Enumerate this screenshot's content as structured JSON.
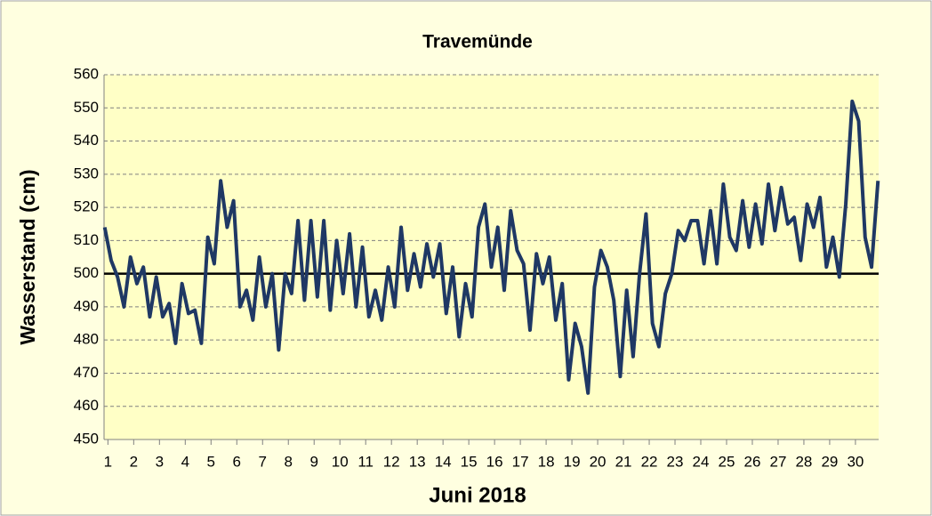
{
  "chart_data": {
    "type": "line",
    "title": "Travemünde",
    "xlabel": "Juni  2018",
    "ylabel": "Wasserstand (cm)",
    "x": [
      0.875,
      1.125,
      1.375,
      1.625,
      1.875,
      2.125,
      2.375,
      2.625,
      2.875,
      3.125,
      3.375,
      3.625,
      3.875,
      4.125,
      4.375,
      4.625,
      4.875,
      5.125,
      5.375,
      5.625,
      5.875,
      6.125,
      6.375,
      6.625,
      6.875,
      7.125,
      7.375,
      7.625,
      7.875,
      8.125,
      8.375,
      8.625,
      8.875,
      9.125,
      9.375,
      9.625,
      9.875,
      10.125,
      10.375,
      10.625,
      10.875,
      11.125,
      11.375,
      11.625,
      11.875,
      12.125,
      12.375,
      12.625,
      12.875,
      13.125,
      13.375,
      13.625,
      13.875,
      14.125,
      14.375,
      14.625,
      14.875,
      15.125,
      15.375,
      15.625,
      15.875,
      16.125,
      16.375,
      16.625,
      16.875,
      17.125,
      17.375,
      17.625,
      17.875,
      18.125,
      18.375,
      18.625,
      18.875,
      19.125,
      19.375,
      19.625,
      19.875,
      20.125,
      20.375,
      20.625,
      20.875,
      21.125,
      21.375,
      21.625,
      21.875,
      22.125,
      22.375,
      22.625,
      22.875,
      23.125,
      23.375,
      23.625,
      23.875,
      24.125,
      24.375,
      24.625,
      24.875,
      25.125,
      25.375,
      25.625,
      25.875,
      26.125,
      26.375,
      26.625,
      26.875,
      27.125,
      27.375,
      27.625,
      27.875,
      28.125,
      28.375,
      28.625,
      28.875,
      29.125,
      29.375,
      29.625,
      29.875,
      30.125,
      30.375,
      30.625,
      30.875
    ],
    "series": [
      {
        "name": "Wasserstand",
        "color": "#1f3864",
        "values": [
          514,
          504,
          499,
          490,
          505,
          497,
          502,
          487,
          499,
          487,
          491,
          479,
          497,
          488,
          489,
          479,
          511,
          503,
          528,
          514,
          522,
          490,
          495,
          486,
          505,
          490,
          500,
          477,
          500,
          494,
          516,
          492,
          516,
          493,
          516,
          489,
          510,
          494,
          512,
          490,
          508,
          487,
          495,
          486,
          502,
          490,
          514,
          495,
          506,
          496,
          509,
          499,
          509,
          488,
          502,
          481,
          497,
          487,
          514,
          521,
          502,
          514,
          495,
          519,
          507,
          503,
          483,
          506,
          497,
          505,
          486,
          497,
          468,
          485,
          478,
          464,
          496,
          507,
          502,
          492,
          469,
          495,
          475,
          500,
          518,
          485,
          478,
          494,
          500,
          513,
          510,
          516,
          516,
          503,
          519,
          503,
          527,
          511,
          507,
          522,
          508,
          521,
          509,
          527,
          513,
          526,
          515,
          517,
          504,
          521,
          514,
          523,
          502,
          511,
          499,
          521,
          552,
          546,
          511,
          502,
          528
        ]
      }
    ],
    "reference_line": 500,
    "reference_color": "#000000",
    "xlim": [
      0.85,
      30.9
    ],
    "xticks": [
      {
        "value": 1,
        "label": "1"
      },
      {
        "value": 2,
        "label": "2"
      },
      {
        "value": 3,
        "label": "3"
      },
      {
        "value": 4,
        "label": "4"
      },
      {
        "value": 5,
        "label": "5"
      },
      {
        "value": 6,
        "label": "6"
      },
      {
        "value": 7,
        "label": "7"
      },
      {
        "value": 8,
        "label": "8"
      },
      {
        "value": 9,
        "label": "9"
      },
      {
        "value": 10,
        "label": "10"
      },
      {
        "value": 11,
        "label": "11"
      },
      {
        "value": 12,
        "label": "12"
      },
      {
        "value": 13,
        "label": "13"
      },
      {
        "value": 14,
        "label": "14"
      },
      {
        "value": 15,
        "label": "15"
      },
      {
        "value": 16,
        "label": "16"
      },
      {
        "value": 17,
        "label": "17"
      },
      {
        "value": 18,
        "label": "18"
      },
      {
        "value": 19,
        "label": "19"
      },
      {
        "value": 20,
        "label": "20"
      },
      {
        "value": 21,
        "label": "21"
      },
      {
        "value": 22,
        "label": "22"
      },
      {
        "value": 23,
        "label": "23"
      },
      {
        "value": 24,
        "label": "24"
      },
      {
        "value": 25,
        "label": "25"
      },
      {
        "value": 26,
        "label": "26"
      },
      {
        "value": 27,
        "label": "27"
      },
      {
        "value": 28,
        "label": "28"
      },
      {
        "value": 29,
        "label": "29"
      },
      {
        "value": 30,
        "label": "30"
      }
    ],
    "ylim": [
      450,
      560
    ],
    "yticks": [
      450,
      460,
      470,
      480,
      490,
      500,
      510,
      520,
      530,
      540,
      550,
      560
    ],
    "grid": true
  }
}
